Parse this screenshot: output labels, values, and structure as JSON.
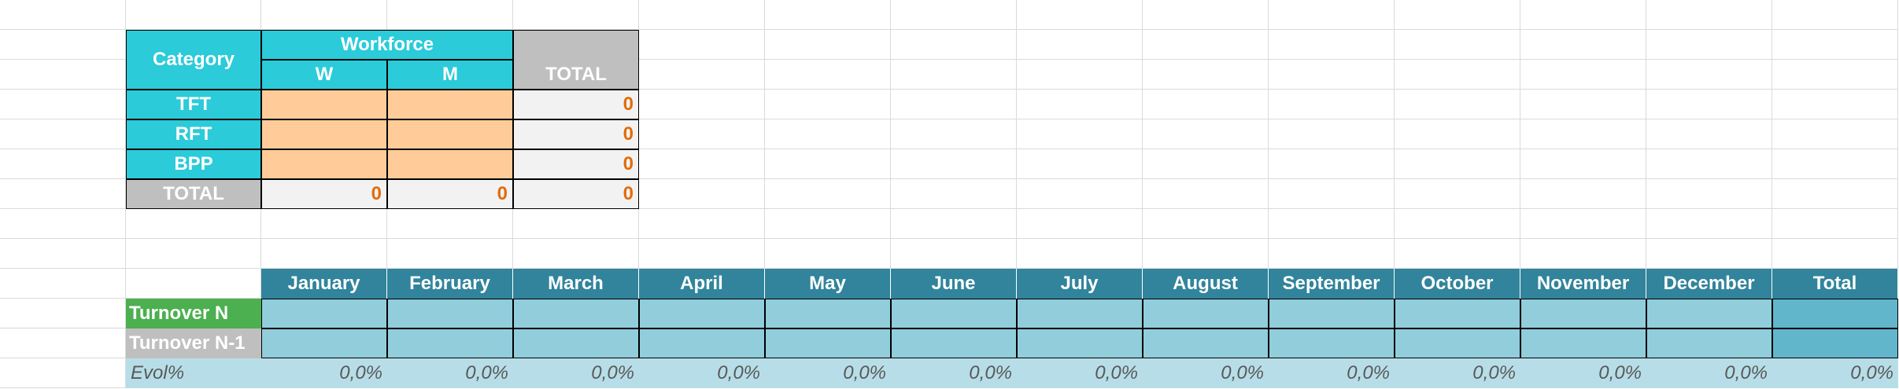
{
  "workforce_table": {
    "headers": {
      "category": "Category",
      "workforce": "Workforce",
      "w": "W",
      "m": "M",
      "total": "TOTAL"
    },
    "rows": [
      {
        "label": "TFT",
        "total": 0
      },
      {
        "label": "RFT",
        "total": 0
      },
      {
        "label": "BPP",
        "total": 0
      }
    ],
    "total_row": {
      "label": "TOTAL",
      "w": 0,
      "m": 0,
      "total": 0
    }
  },
  "turnover_table": {
    "months": [
      "January",
      "February",
      "March",
      "April",
      "May",
      "June",
      "July",
      "August",
      "September",
      "October",
      "November",
      "December",
      "Total"
    ],
    "rows": [
      {
        "label": "Turnover N"
      },
      {
        "label": "Turnover N-1"
      }
    ],
    "evol": {
      "label": "Evol%",
      "values": [
        "0,0%",
        "0,0%",
        "0,0%",
        "0,0%",
        "0,0%",
        "0,0%",
        "0,0%",
        "0,0%",
        "0,0%",
        "0,0%",
        "0,0%",
        "0,0%",
        "0,0%"
      ]
    }
  }
}
